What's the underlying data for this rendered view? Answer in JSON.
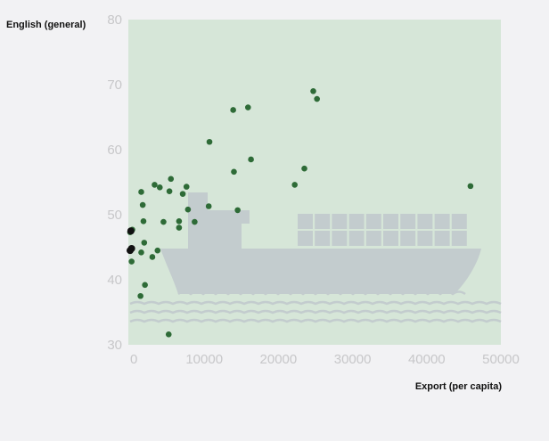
{
  "chart_data": {
    "type": "scatter",
    "title": "",
    "xlabel": "Export (per capita)",
    "ylabel": "English (general)",
    "xlim": [
      0,
      50000
    ],
    "ylim": [
      30,
      80
    ],
    "x_ticks": [
      "0",
      "10000",
      "20000",
      "30000",
      "40000",
      "50000"
    ],
    "y_ticks": [
      "30",
      "40",
      "50",
      "60",
      "70",
      "80"
    ],
    "grid": false,
    "legend": "none",
    "colors": {
      "plot_background": "#d6e6d8",
      "point": "#2e6b37",
      "highlight_point": "#111111",
      "illustration": "#c3ccce",
      "tick_label": "#c7c7c9"
    },
    "series": [
      {
        "points": [
          [
            1400,
            37.5
          ],
          [
            2000,
            39.2
          ],
          [
            200,
            42.8
          ],
          [
            3000,
            43.5
          ],
          [
            1500,
            44.2
          ],
          [
            3700,
            44.5
          ],
          [
            1900,
            45.7
          ],
          [
            0,
            47.3
          ],
          [
            300,
            47.7
          ],
          [
            6600,
            48.0
          ],
          [
            8700,
            48.9
          ],
          [
            1800,
            49.0
          ],
          [
            4500,
            48.9
          ],
          [
            6600,
            49.0
          ],
          [
            7800,
            50.8
          ],
          [
            14500,
            50.7
          ],
          [
            10600,
            51.3
          ],
          [
            1700,
            51.5
          ],
          [
            7100,
            53.2
          ],
          [
            1500,
            53.5
          ],
          [
            5300,
            53.6
          ],
          [
            4000,
            54.2
          ],
          [
            3300,
            54.6
          ],
          [
            7600,
            54.3
          ],
          [
            5500,
            55.5
          ],
          [
            22200,
            54.6
          ],
          [
            45900,
            54.4
          ],
          [
            14000,
            56.6
          ],
          [
            23500,
            57.1
          ],
          [
            16300,
            58.5
          ],
          [
            10700,
            61.2
          ],
          [
            13900,
            66.1
          ],
          [
            15900,
            66.5
          ],
          [
            25200,
            67.8
          ],
          [
            24700,
            69.0
          ],
          [
            5200,
            31.6
          ]
        ]
      },
      {
        "points": [
          [
            0,
            44.5
          ],
          [
            200,
            44.8
          ],
          [
            100,
            47.5
          ]
        ]
      }
    ]
  }
}
